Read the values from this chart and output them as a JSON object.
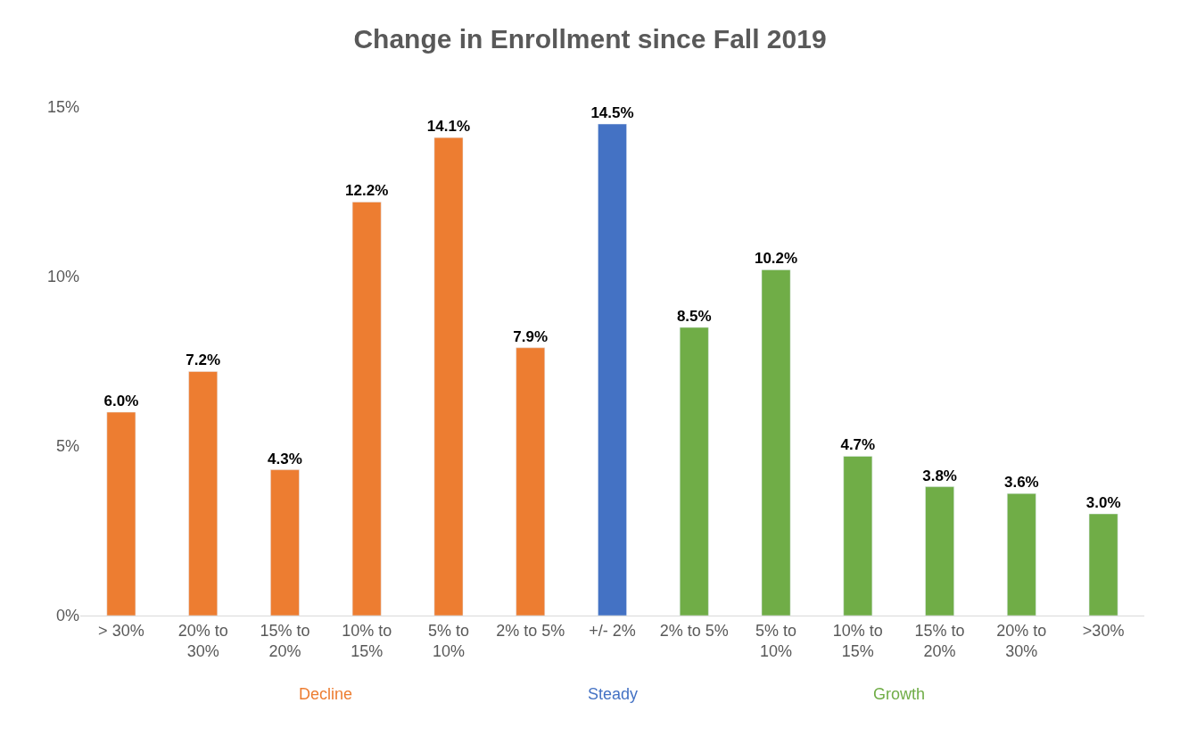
{
  "chart_data": {
    "type": "bar",
    "title": "Change in Enrollment since Fall 2019",
    "categories": [
      "> 30%",
      "20% to 30%",
      "15% to 20%",
      "10% to 15%",
      "5% to 10%",
      "2% to 5%",
      "+/- 2%",
      "2% to 5%",
      "5% to 10%",
      "10% to 15%",
      "15% to 20%",
      "20% to 30%",
      ">30%"
    ],
    "series": [
      {
        "name": "Decline",
        "color": "#ed7d31",
        "values": [
          6.0,
          7.2,
          4.3,
          12.2,
          14.1,
          7.9,
          null,
          null,
          null,
          null,
          null,
          null,
          null
        ],
        "value_labels": [
          "6.0%",
          "7.2%",
          "4.3%",
          "12.2%",
          "14.1%",
          "7.9%",
          null,
          null,
          null,
          null,
          null,
          null,
          null
        ]
      },
      {
        "name": "Steady",
        "color": "#4472c4",
        "values": [
          null,
          null,
          null,
          null,
          null,
          null,
          14.5,
          null,
          null,
          null,
          null,
          null,
          null
        ],
        "value_labels": [
          null,
          null,
          null,
          null,
          null,
          null,
          "14.5%",
          null,
          null,
          null,
          null,
          null,
          null
        ]
      },
      {
        "name": "Growth",
        "color": "#70ad47",
        "values": [
          null,
          null,
          null,
          null,
          null,
          null,
          null,
          8.5,
          10.2,
          4.7,
          3.8,
          3.6,
          3.0
        ],
        "value_labels": [
          null,
          null,
          null,
          null,
          null,
          null,
          null,
          "8.5%",
          "10.2%",
          "4.7%",
          "3.8%",
          "3.6%",
          "3.0%"
        ]
      }
    ],
    "ylim": [
      0,
      15
    ],
    "yticks": [
      {
        "value": 0,
        "label": "0%"
      },
      {
        "value": 5,
        "label": "5%"
      },
      {
        "value": 10,
        "label": "10%"
      },
      {
        "value": 15,
        "label": "15%"
      }
    ],
    "legend": false
  }
}
